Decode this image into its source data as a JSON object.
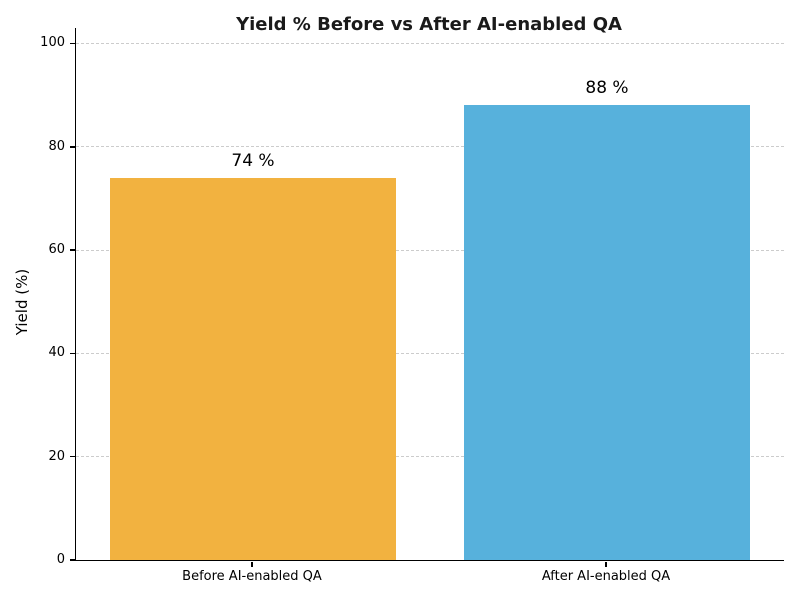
{
  "title": "Yield % Before vs After AI-enabled QA",
  "chart_data": {
    "type": "bar",
    "title": "Yield % Before vs After AI-enabled QA",
    "categories": [
      "Before AI-enabled QA",
      "After AI-enabled QA"
    ],
    "values": [
      74,
      88
    ],
    "bar_value_labels": [
      "74 %",
      "88 %"
    ],
    "bar_colors": [
      "#F2B240",
      "#57B1DC"
    ],
    "xlabel": "",
    "ylabel": "Yield (%)",
    "ylim": [
      0,
      103
    ],
    "yticks": [
      0,
      20,
      40,
      60,
      80,
      100
    ],
    "grid": "horizontal-dashed",
    "legend": "none"
  },
  "colors": {
    "grid": "#cccccc",
    "axis": "#000000",
    "title_text": "#1a1a1a",
    "label_text": "#000000"
  }
}
